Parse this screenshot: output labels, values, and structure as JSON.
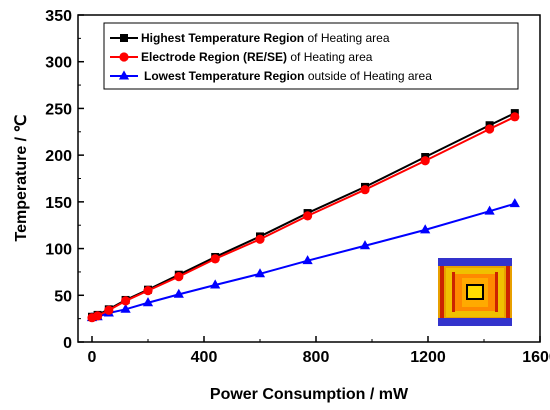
{
  "chart_data": {
    "type": "line",
    "xlabel": "Power Consumption / mW",
    "ylabel": "Temperature / ℃",
    "xlim": [
      -50,
      1600
    ],
    "ylim": [
      0,
      350
    ],
    "x_ticks": [
      0,
      400,
      800,
      1200,
      1600
    ],
    "y_ticks": [
      0,
      50,
      100,
      150,
      200,
      250,
      300,
      350
    ],
    "grid": false,
    "legend_position": "top-left",
    "series": [
      {
        "name_bold": "Highest Temperature Region",
        "name_rest": " of Heating area",
        "color": "#000000",
        "marker": "square",
        "x": [
          0,
          20,
          60,
          120,
          200,
          310,
          440,
          600,
          770,
          975,
          1190,
          1420,
          1510
        ],
        "y": [
          27,
          29,
          35,
          45,
          56,
          72,
          91,
          113,
          138,
          166,
          198,
          232,
          245
        ]
      },
      {
        "name_bold": "Electrode Region (RE/SE)",
        "name_rest": " of Heating area",
        "color": "#ff0000",
        "marker": "circle",
        "x": [
          0,
          20,
          60,
          120,
          200,
          310,
          440,
          600,
          770,
          975,
          1190,
          1420,
          1510
        ],
        "y": [
          26,
          28,
          34,
          44,
          55,
          70,
          89,
          110,
          135,
          163,
          194,
          228,
          241
        ]
      },
      {
        "name_bold": "Lowest Temperature Region",
        "name_rest": " outside of Heating area",
        "color": "#0000ff",
        "marker": "triangle",
        "x": [
          0,
          20,
          60,
          120,
          200,
          310,
          440,
          600,
          770,
          975,
          1190,
          1420,
          1510
        ],
        "y": [
          26,
          27,
          31,
          35,
          42,
          51,
          61,
          73,
          87,
          103,
          120,
          140,
          148
        ]
      }
    ]
  }
}
